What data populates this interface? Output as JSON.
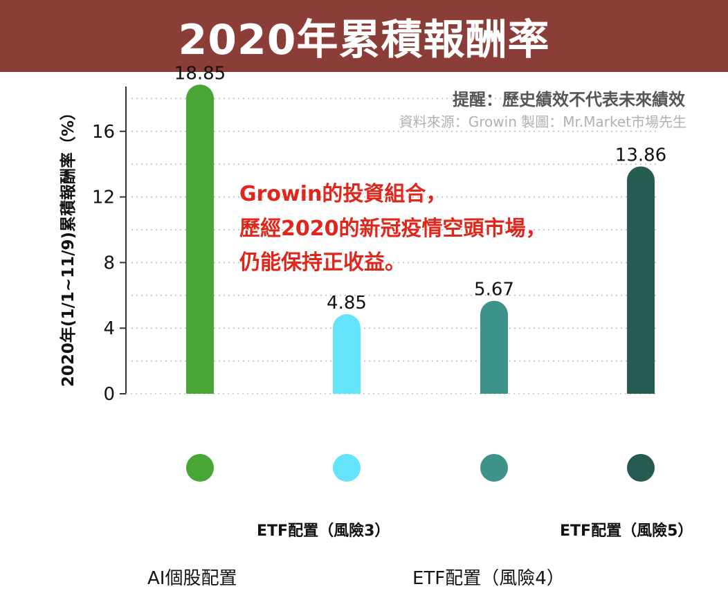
{
  "banner": {
    "title": "2020年累積報酬率"
  },
  "notes": {
    "reminder": "提醒：歷史績效不代表未來績效",
    "source": "資料來源：Growin  製圖：Mr.Market市場先生"
  },
  "annotation": {
    "lines": [
      "Growin的投資組合，",
      "歷經2020的新冠疫情空頭市場，",
      "仍能保持正收益。"
    ],
    "color": "#e0261b"
  },
  "chart_data": {
    "type": "bar",
    "ylabel": "2020年(1/1~11/9)累積報酬率（%）",
    "xlabel": "",
    "title": "",
    "ylim": [
      0,
      18.5
    ],
    "yticks": [
      0,
      4,
      8,
      12,
      16
    ],
    "grid": true,
    "categories": [
      "AI個股配置",
      "ETF配置（風險3）",
      "ETF配置（風險4）",
      "ETF配置（風險5）"
    ],
    "values": [
      18.85,
      4.85,
      5.67,
      13.86
    ],
    "value_labels": [
      "18.85",
      "4.85",
      "5.67",
      "13.86"
    ],
    "colors": [
      "#4aa634",
      "#64e4fb",
      "#3d9289",
      "#265b52"
    ]
  }
}
